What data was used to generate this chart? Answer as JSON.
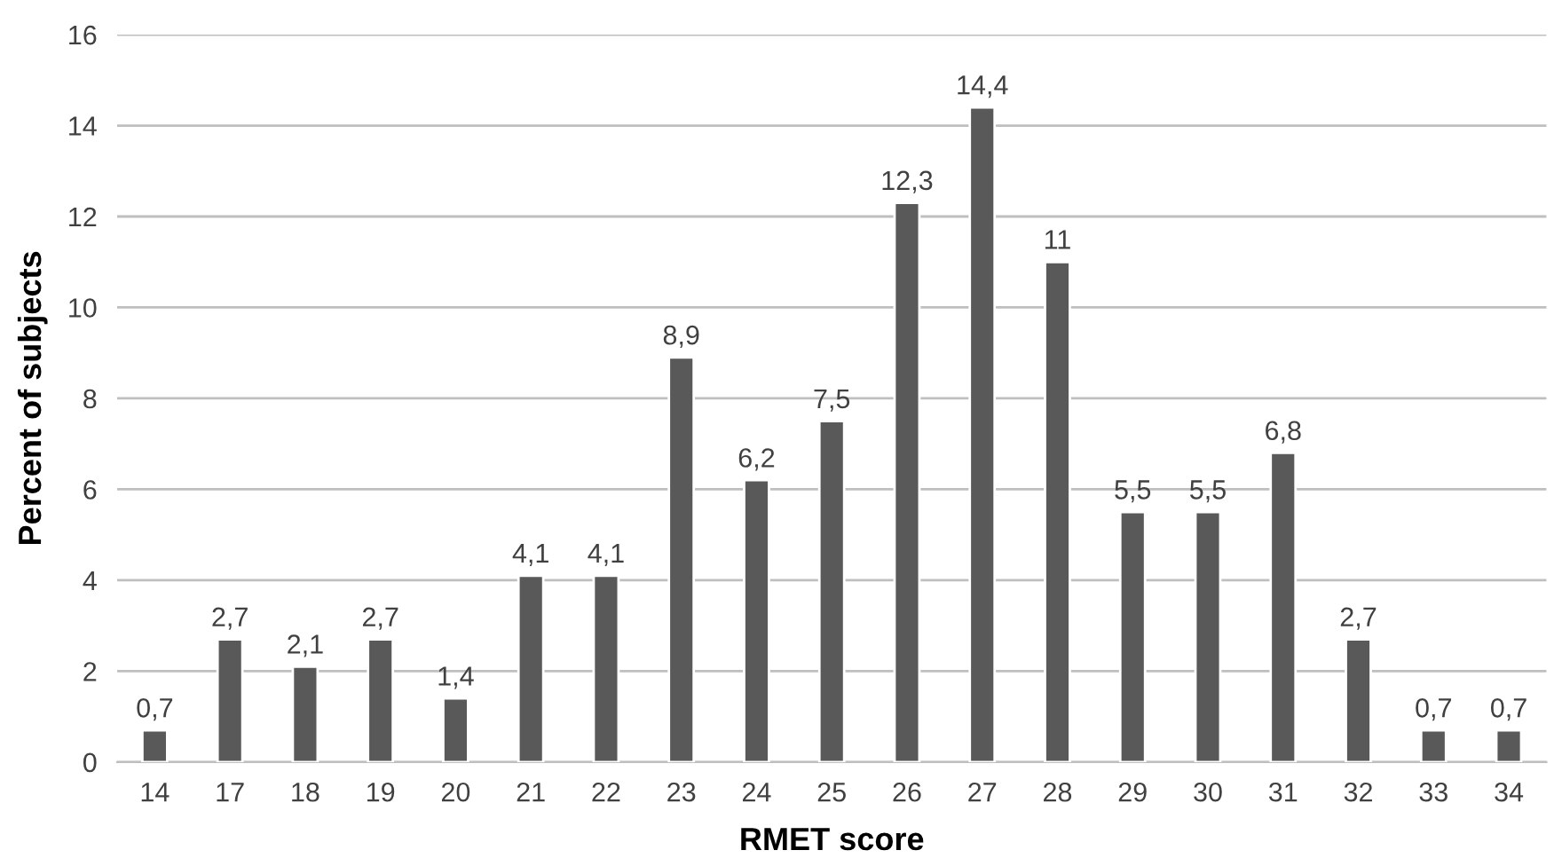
{
  "chart_data": {
    "type": "bar",
    "xlabel": "RMET score",
    "ylabel": "Percent of subjects",
    "categories": [
      "14",
      "17",
      "18",
      "19",
      "20",
      "21",
      "22",
      "23",
      "24",
      "25",
      "26",
      "27",
      "28",
      "29",
      "30",
      "31",
      "32",
      "33",
      "34"
    ],
    "values": [
      0.7,
      2.7,
      2.1,
      2.7,
      1.4,
      4.1,
      4.1,
      8.9,
      6.2,
      7.5,
      12.3,
      14.4,
      11,
      5.5,
      5.5,
      6.8,
      2.7,
      0.7,
      0.7
    ],
    "value_labels": [
      "0,7",
      "2,7",
      "2,1",
      "2,7",
      "1,4",
      "4,1",
      "4,1",
      "8,9",
      "6,2",
      "7,5",
      "12,3",
      "14,4",
      "11",
      "5,5",
      "5,5",
      "6,8",
      "2,7",
      "0,7",
      "0,7"
    ],
    "color": "#595959",
    "ylim": [
      0,
      16
    ],
    "yticks": [
      0,
      2,
      4,
      6,
      8,
      10,
      12,
      14,
      16
    ],
    "grid": "y",
    "legend": false
  }
}
